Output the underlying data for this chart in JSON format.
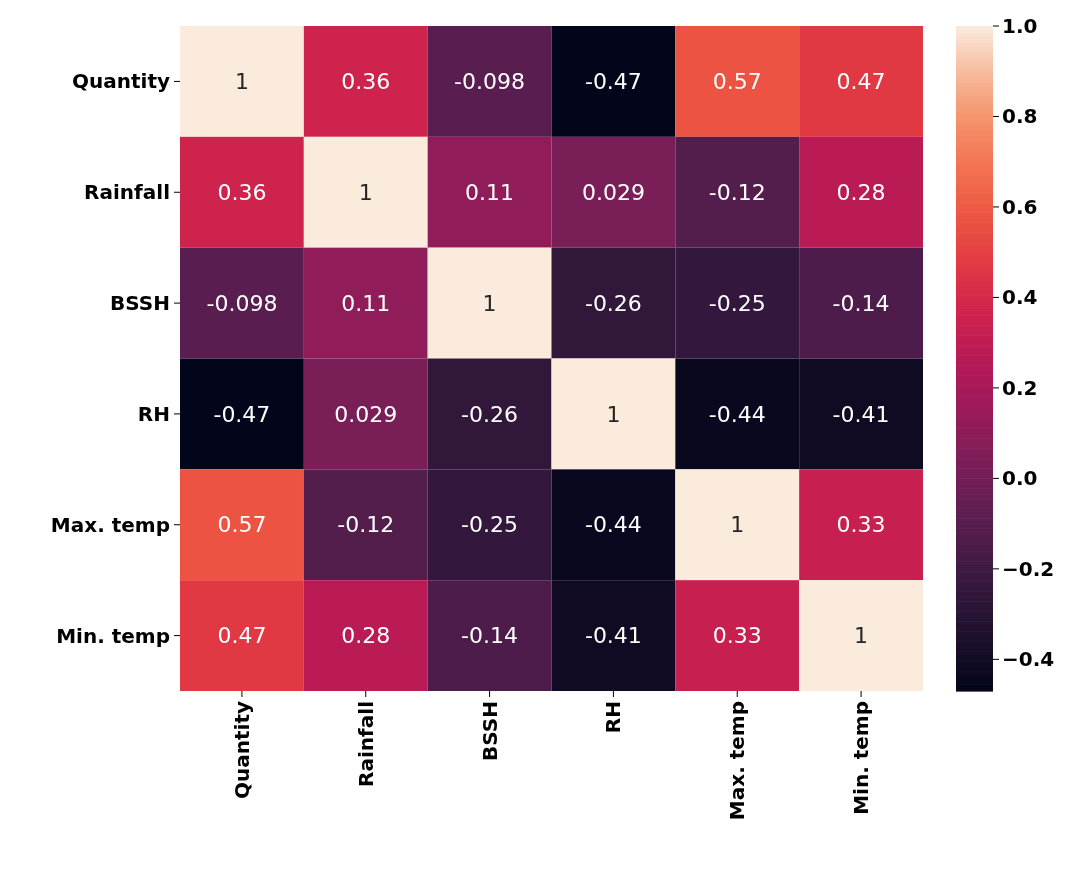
{
  "chart_data": {
    "type": "heatmap",
    "categories": [
      "Quantity",
      "Rainfall",
      "BSSH",
      "RH",
      "Max. temp",
      "Min. temp"
    ],
    "y_categories": [
      "Quantity",
      "Rainfall",
      "BSSH",
      "RH",
      "Max. temp",
      "Min. temp"
    ],
    "cells": [
      [
        1,
        0.36,
        -0.098,
        -0.47,
        0.57,
        0.47
      ],
      [
        0.36,
        1,
        0.11,
        0.029,
        -0.12,
        0.28
      ],
      [
        -0.098,
        0.11,
        1,
        -0.26,
        -0.25,
        -0.14
      ],
      [
        -0.47,
        0.029,
        -0.26,
        1,
        -0.44,
        -0.41
      ],
      [
        0.57,
        -0.12,
        -0.25,
        -0.44,
        1,
        0.33
      ],
      [
        0.47,
        0.28,
        -0.14,
        -0.41,
        0.33,
        1
      ]
    ],
    "data_labels": true,
    "clim": [
      -0.47,
      1
    ],
    "cticks": [
      {
        "value": 1,
        "label": "1.0"
      },
      {
        "value": 0.8,
        "label": "0.8"
      },
      {
        "value": 0.6,
        "label": "0.6"
      },
      {
        "value": 0.4,
        "label": "0.4"
      },
      {
        "value": 0.2,
        "label": "0.2"
      },
      {
        "value": 0,
        "label": "0.0"
      },
      {
        "value": -0.2,
        "label": "−0.2"
      },
      {
        "value": -0.4,
        "label": "−0.4"
      }
    ]
  }
}
